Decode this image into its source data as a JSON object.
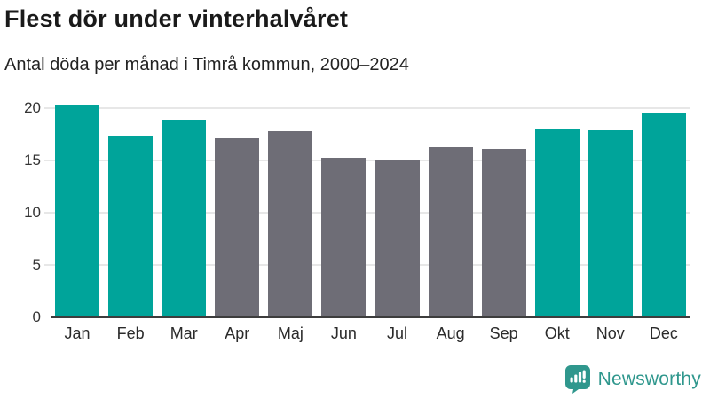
{
  "header": {
    "title": "Flest dör under vinterhalvåret",
    "subtitle": "Antal döda per månad i Timrå kommun, 2000–2024"
  },
  "chart_data": {
    "type": "bar",
    "title": "Flest dör under vinterhalvåret",
    "subtitle": "Antal döda per månad i Timrå kommun, 2000–2024",
    "categories": [
      "Jan",
      "Feb",
      "Mar",
      "Apr",
      "Maj",
      "Jun",
      "Jul",
      "Aug",
      "Sep",
      "Okt",
      "Nov",
      "Dec"
    ],
    "values": [
      20.4,
      17.4,
      18.9,
      17.1,
      17.8,
      15.3,
      15.0,
      16.3,
      16.1,
      18.0,
      17.9,
      19.6
    ],
    "bar_color_keys": [
      "highlight",
      "highlight",
      "highlight",
      "muted",
      "muted",
      "muted",
      "muted",
      "muted",
      "muted",
      "highlight",
      "highlight",
      "highlight"
    ],
    "colors": {
      "highlight": "#00a49a",
      "muted": "#6e6d76"
    },
    "xlabel": "",
    "ylabel": "",
    "ylim": [
      0,
      20
    ],
    "yticks": [
      0,
      5,
      10,
      15,
      20
    ],
    "grid": true,
    "legend": false
  },
  "branding": {
    "logo_text": "Newsworthy",
    "logo_color": "#2f978d",
    "logo_icon": "bar-chart-speech-bubble-icon"
  }
}
